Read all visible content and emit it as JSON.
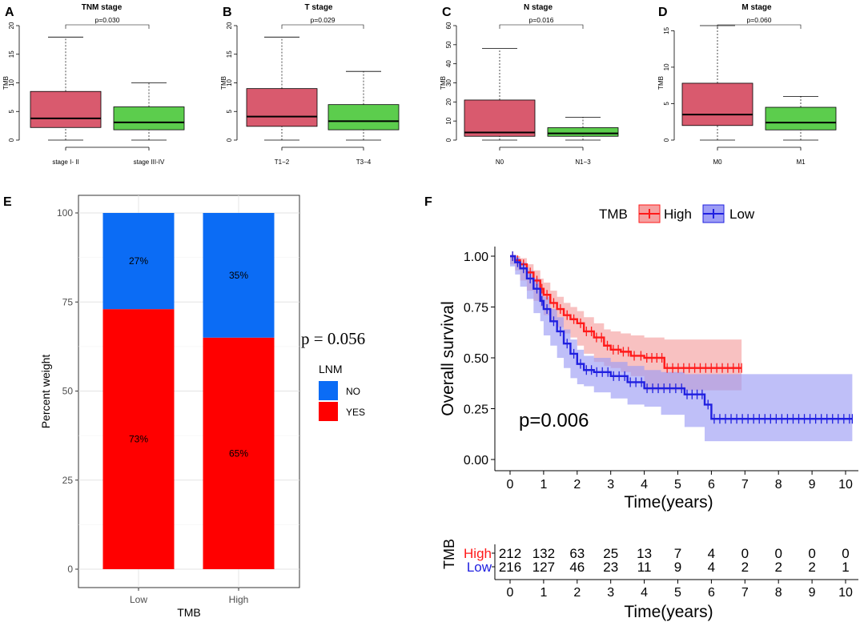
{
  "colors": {
    "box_pink": "#d95a6e",
    "box_green": "#5ccd4d",
    "bar_blue": "#0b6cf5",
    "bar_red": "#ff0000",
    "km_red": "#ff1a1a",
    "km_blue": "#2020e0",
    "km_red_band": "#f5a0a0",
    "km_blue_band": "#9d9df5"
  },
  "chart_data": [
    {
      "panel": "A",
      "type": "box",
      "title": "TNM stage",
      "ylabel": "TMB",
      "ylim": [
        0,
        20
      ],
      "yticks": [
        0,
        5,
        10,
        15,
        20
      ],
      "pvalue": "p=0.030",
      "groups": [
        {
          "label": "stage I- II",
          "min": 0,
          "q1": 2.2,
          "median": 3.8,
          "q3": 8.5,
          "max": 18
        },
        {
          "label": "stage III-IV",
          "min": 0,
          "q1": 1.8,
          "median": 3.1,
          "q3": 5.8,
          "max": 10
        }
      ]
    },
    {
      "panel": "B",
      "type": "box",
      "title": "T stage",
      "ylabel": "TMB",
      "ylim": [
        0,
        20
      ],
      "yticks": [
        0,
        5,
        10,
        15,
        20
      ],
      "pvalue": "p=0.029",
      "groups": [
        {
          "label": "T1−2",
          "min": 0,
          "q1": 2.4,
          "median": 4.1,
          "q3": 9,
          "max": 18
        },
        {
          "label": "T3−4",
          "min": 0,
          "q1": 1.8,
          "median": 3.3,
          "q3": 6.2,
          "max": 12
        }
      ]
    },
    {
      "panel": "C",
      "type": "box",
      "title": "N stage",
      "ylabel": "TMB",
      "ylim": [
        0,
        60
      ],
      "yticks": [
        0,
        10,
        20,
        30,
        40,
        50,
        60
      ],
      "pvalue": "p=0.016",
      "groups": [
        {
          "label": "N0",
          "min": 0,
          "q1": 2,
          "median": 4,
          "q3": 21,
          "max": 48
        },
        {
          "label": "N1−3",
          "min": 0,
          "q1": 2,
          "median": 3.5,
          "q3": 6.5,
          "max": 12
        }
      ]
    },
    {
      "panel": "D",
      "type": "box",
      "title": "M stage",
      "ylabel": "TMB",
      "ylim": [
        0,
        15.7
      ],
      "yticks": [
        0,
        5,
        10,
        15
      ],
      "pvalue": "p=0.060",
      "groups": [
        {
          "label": "M0",
          "min": 0,
          "q1": 2,
          "median": 3.5,
          "q3": 7.8,
          "max": 15.7
        },
        {
          "label": "M1",
          "min": 0,
          "q1": 1.4,
          "median": 2.4,
          "q3": 4.5,
          "max": 6
        }
      ]
    },
    {
      "panel": "E",
      "type": "bar",
      "stacked": true,
      "xlabel": "TMB",
      "ylabel": "Percent weight",
      "categories": [
        "Low",
        "High"
      ],
      "ylim": [
        0,
        100
      ],
      "yticks": [
        0,
        25,
        50,
        75,
        100
      ],
      "series": [
        {
          "name": "YES",
          "values": [
            73,
            65
          ],
          "labels": [
            "73%",
            "65%"
          ]
        },
        {
          "name": "NO",
          "values": [
            27,
            35
          ],
          "labels": [
            "27%",
            "35%"
          ]
        }
      ],
      "legend_title": "LNM",
      "legend_items": [
        "NO",
        "YES"
      ],
      "pvalue": "p = 0.056"
    },
    {
      "panel": "F",
      "type": "line",
      "subtype": "kaplan-meier",
      "xlabel": "Time(years)",
      "ylabel": "Overall survival",
      "xlim": [
        0,
        10
      ],
      "ylim": [
        0,
        1
      ],
      "xticks": [
        0,
        1,
        2,
        3,
        4,
        5,
        6,
        7,
        8,
        9,
        10
      ],
      "yticks": [
        "0.00",
        "0.25",
        "0.50",
        "0.75",
        "1.00"
      ],
      "legend_title": "TMB",
      "pvalue": "p=0.006",
      "series": [
        {
          "name": "High",
          "x": [
            0,
            0.15,
            0.3,
            0.5,
            0.7,
            0.9,
            1.0,
            1.2,
            1.4,
            1.6,
            1.8,
            2.0,
            2.2,
            2.5,
            2.8,
            3.0,
            3.3,
            3.6,
            4.0,
            4.6,
            6.9
          ],
          "y": [
            1.0,
            0.98,
            0.96,
            0.92,
            0.88,
            0.84,
            0.81,
            0.77,
            0.74,
            0.71,
            0.69,
            0.67,
            0.63,
            0.6,
            0.56,
            0.54,
            0.53,
            0.51,
            0.5,
            0.45,
            0.45
          ],
          "upper": [
            1.0,
            1.0,
            0.99,
            0.96,
            0.93,
            0.89,
            0.87,
            0.83,
            0.8,
            0.77,
            0.75,
            0.73,
            0.7,
            0.67,
            0.64,
            0.63,
            0.62,
            0.61,
            0.6,
            0.59,
            0.59
          ],
          "lower": [
            1.0,
            0.96,
            0.93,
            0.88,
            0.83,
            0.78,
            0.75,
            0.71,
            0.68,
            0.65,
            0.62,
            0.6,
            0.56,
            0.52,
            0.48,
            0.46,
            0.45,
            0.43,
            0.41,
            0.34,
            0.34
          ]
        },
        {
          "name": "Low",
          "x": [
            0,
            0.15,
            0.3,
            0.5,
            0.7,
            0.9,
            1.0,
            1.2,
            1.4,
            1.6,
            1.8,
            2.0,
            2.2,
            2.5,
            3.0,
            3.5,
            4.0,
            4.5,
            5.2,
            5.8,
            6.0,
            10.2
          ],
          "y": [
            1.0,
            0.97,
            0.94,
            0.89,
            0.84,
            0.78,
            0.74,
            0.68,
            0.63,
            0.57,
            0.52,
            0.47,
            0.44,
            0.43,
            0.41,
            0.38,
            0.35,
            0.35,
            0.32,
            0.27,
            0.2,
            0.2
          ],
          "upper": [
            1.0,
            0.99,
            0.97,
            0.93,
            0.89,
            0.84,
            0.8,
            0.74,
            0.7,
            0.64,
            0.59,
            0.54,
            0.51,
            0.5,
            0.48,
            0.46,
            0.44,
            0.43,
            0.42,
            0.42,
            0.42,
            0.42
          ],
          "lower": [
            1.0,
            0.95,
            0.91,
            0.85,
            0.79,
            0.72,
            0.68,
            0.61,
            0.56,
            0.5,
            0.45,
            0.4,
            0.37,
            0.36,
            0.33,
            0.3,
            0.27,
            0.26,
            0.22,
            0.16,
            0.09,
            0.09
          ]
        }
      ],
      "risk_table": {
        "title": "TMB",
        "xlabel": "Time(years)",
        "rows": [
          {
            "name": "High",
            "values": [
              212,
              132,
              63,
              25,
              13,
              7,
              4,
              0,
              0,
              0,
              0
            ]
          },
          {
            "name": "Low",
            "values": [
              216,
              127,
              46,
              23,
              11,
              9,
              4,
              2,
              2,
              2,
              1
            ]
          }
        ]
      }
    }
  ]
}
